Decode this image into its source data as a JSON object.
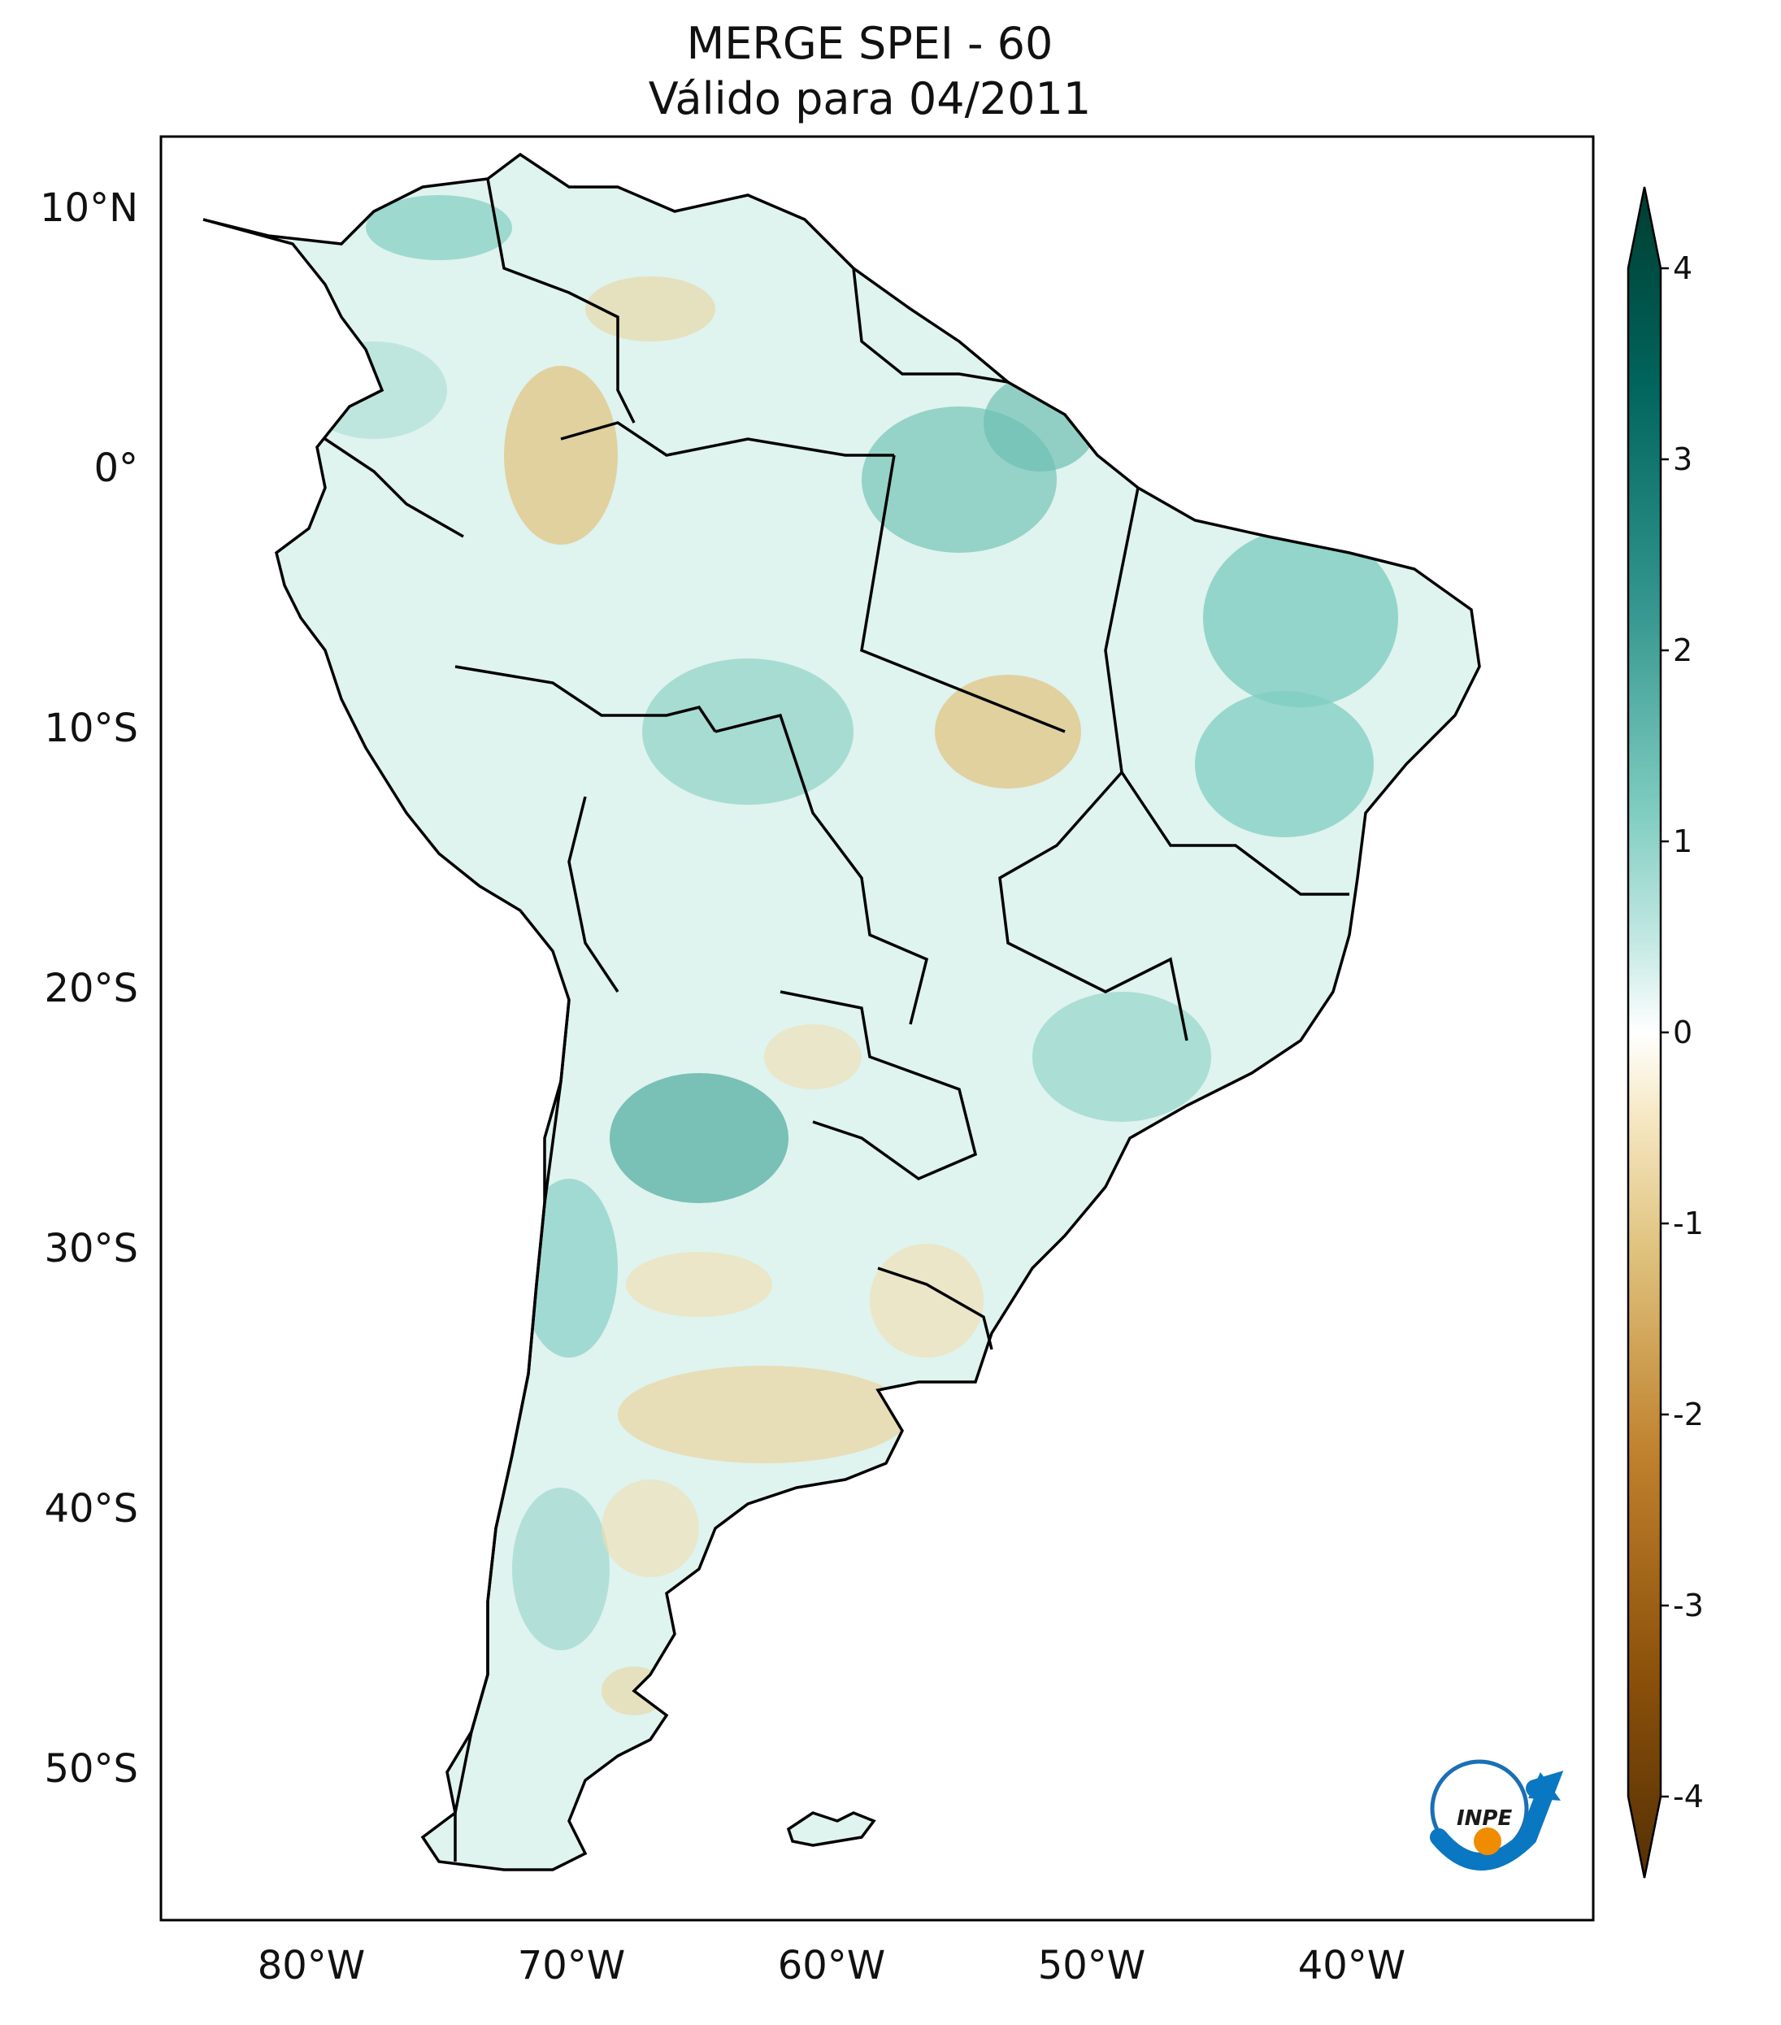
{
  "title": {
    "line1": "MERGE   SPEI - 60",
    "line2": "Válido para 04/2011"
  },
  "axes": {
    "lat_labels": [
      "10°N",
      "0°",
      "10°S",
      "20°S",
      "30°S",
      "40°S",
      "50°S"
    ],
    "lon_labels": [
      "80°W",
      "70°W",
      "60°W",
      "50°W",
      "40°W"
    ]
  },
  "colorbar": {
    "ticks": [
      "4",
      "3",
      "2",
      "1",
      "0",
      "-1",
      "-2",
      "-3",
      "-4"
    ],
    "range": [
      -4,
      4
    ],
    "extend": "both",
    "colors": {
      "max": "#003c30",
      "high": "#01665e",
      "mid_high": "#35978f",
      "low_high": "#80cdc1",
      "pale_high": "#c7eae5",
      "zero": "#ffffff",
      "pale_low": "#f6e8c3",
      "low_low": "#dfc27d",
      "mid_low": "#bf812d",
      "low": "#8c510a",
      "min": "#543005"
    }
  },
  "logo": {
    "text": "INPE",
    "name": "INPE logo"
  }
}
